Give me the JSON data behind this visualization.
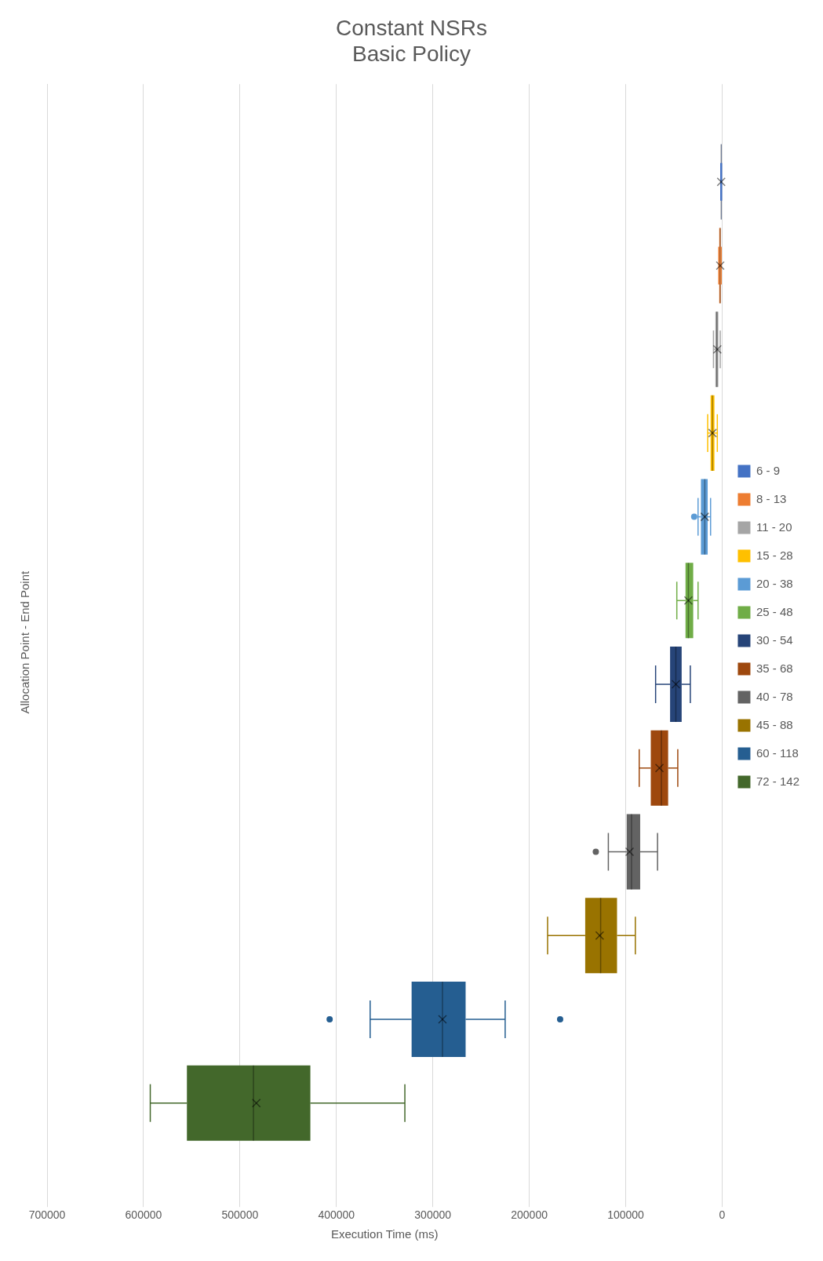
{
  "chart_data": {
    "type": "box",
    "title": "Constant NSRs",
    "subtitle": "Basic Policy",
    "xlabel": "Execution Time (ms)",
    "ylabel": "Allocation Point - End Point",
    "categories": [
      null
    ],
    "series": [
      {
        "name": "6 - 9",
        "color": "#4472c4",
        "boxes": [
          {
            "low": 600,
            "q1": 800,
            "median": 1000,
            "q3": 1200,
            "high": 1400,
            "mean": 1000
          }
        ]
      },
      {
        "name": "8 - 13",
        "color": "#ed7d31",
        "boxes": [
          {
            "low": 1000,
            "q1": 1500,
            "median": 2000,
            "q3": 3000,
            "high": 3500,
            "mean": 2000
          }
        ]
      },
      {
        "name": "11 - 20",
        "color": "#a5a5a5",
        "boxes": [
          {
            "low": 2000,
            "q1": 4000,
            "median": 5500,
            "q3": 7000,
            "high": 9000,
            "mean": 5000
          }
        ]
      },
      {
        "name": "15 - 28",
        "color": "#ffc000",
        "boxes": [
          {
            "low": 5000,
            "q1": 8000,
            "median": 10000,
            "q3": 12000,
            "high": 15000,
            "mean": 10000
          }
        ]
      },
      {
        "name": "20 - 38",
        "color": "#5b9bd5",
        "boxes": [
          {
            "low": 12000,
            "q1": 15000,
            "median": 18000,
            "q3": 22000,
            "high": 25000,
            "mean": 18000,
            "outliers": [
              29000
            ]
          }
        ]
      },
      {
        "name": "25 - 48",
        "color": "#70ad47",
        "boxes": [
          {
            "low": 25000,
            "q1": 30000,
            "median": 35000,
            "q3": 38000,
            "high": 47000,
            "mean": 35000
          }
        ]
      },
      {
        "name": "30 - 54",
        "color": "#264478",
        "boxes": [
          {
            "low": 33000,
            "q1": 42000,
            "median": 48000,
            "q3": 54000,
            "high": 69000,
            "mean": 48000
          }
        ]
      },
      {
        "name": "35 - 68",
        "color": "#9e480e",
        "boxes": [
          {
            "low": 46000,
            "q1": 56000,
            "median": 63000,
            "q3": 74000,
            "high": 86000,
            "mean": 65000
          }
        ]
      },
      {
        "name": "40 - 78",
        "color": "#636363",
        "boxes": [
          {
            "low": 67000,
            "q1": 85000,
            "median": 94000,
            "q3": 99000,
            "high": 118000,
            "mean": 96000,
            "outliers": [
              131000
            ]
          }
        ]
      },
      {
        "name": "45 - 88",
        "color": "#997300",
        "boxes": [
          {
            "low": 90000,
            "q1": 109000,
            "median": 126000,
            "q3": 142000,
            "high": 181000,
            "mean": 127000
          }
        ]
      },
      {
        "name": "60 - 118",
        "color": "#255e91",
        "boxes": [
          {
            "low": 225000,
            "q1": 266000,
            "median": 290000,
            "q3": 322000,
            "high": 365000,
            "mean": 290000,
            "outliers": [
              407000,
              168000
            ]
          }
        ]
      },
      {
        "name": "72 - 142",
        "color": "#43682b",
        "boxes": [
          {
            "low": 329000,
            "q1": 427000,
            "median": 486000,
            "q3": 555000,
            "high": 593000,
            "mean": 483000
          }
        ]
      }
    ],
    "orientation": "horizontal",
    "xlim": [
      700000,
      0
    ],
    "xticks": [
      0,
      100000,
      200000,
      300000,
      400000,
      500000,
      600000,
      700000
    ],
    "grid": "x",
    "legend": "right"
  }
}
